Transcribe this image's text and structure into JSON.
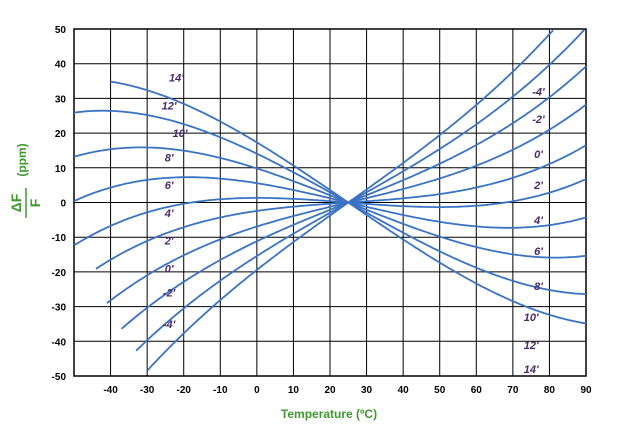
{
  "colors": {
    "curve": "#3a73c4",
    "grid": "#000000",
    "axis_title": "#3f9a2e",
    "label": "#4a2a6a"
  },
  "chart_data": {
    "type": "line",
    "xlabel": "Temperature (ºC)",
    "ylabel_numerator": "ΔF",
    "ylabel_denominator": "F",
    "ylabel_unit": "(ppm)",
    "x_ticks": [
      -40,
      -30,
      -20,
      -10,
      0,
      10,
      20,
      30,
      40,
      50,
      60,
      70,
      80,
      90
    ],
    "y_ticks": [
      50,
      40,
      30,
      20,
      10,
      0,
      -10,
      -20,
      -30,
      -40,
      -50
    ],
    "xlim": [
      -50,
      90
    ],
    "ylim": [
      -50,
      50
    ],
    "grid": true,
    "inflection": {
      "x": 25,
      "y": 0
    },
    "curve_k": 4.35e-05,
    "series": [
      {
        "label": "-4'",
        "slope": 0.75,
        "x_start": -30,
        "x_end": 90
      },
      {
        "label": "-2'",
        "slope": 0.59,
        "x_start": -33,
        "x_end": 90
      },
      {
        "label": "0'",
        "slope": 0.42,
        "x_start": -37,
        "x_end": 90
      },
      {
        "label": "2'",
        "slope": 0.25,
        "x_start": -41,
        "x_end": 90
      },
      {
        "label": "4'",
        "slope": 0.07,
        "x_start": -44,
        "x_end": 90
      },
      {
        "label": "6'",
        "slope": -0.08,
        "x_start": -50,
        "x_end": 90
      },
      {
        "label": "8'",
        "slope": -0.25,
        "x_start": -50,
        "x_end": 90
      },
      {
        "label": "10'",
        "slope": -0.42,
        "x_start": -50,
        "x_end": 90
      },
      {
        "label": "12'",
        "slope": -0.59,
        "x_start": -50,
        "x_end": 90
      },
      {
        "label": "14'",
        "slope": -0.72,
        "x_start": -40,
        "x_end": 90
      }
    ],
    "left_labels": [
      {
        "text": "14'",
        "x": -22,
        "y": 36
      },
      {
        "text": "12'",
        "x": -24,
        "y": 28
      },
      {
        "text": "10'",
        "x": -21,
        "y": 20
      },
      {
        "text": "8'",
        "x": -24,
        "y": 13
      },
      {
        "text": "6'",
        "x": -24,
        "y": 5
      },
      {
        "text": "4'",
        "x": -24,
        "y": -3
      },
      {
        "text": "2'",
        "x": -24,
        "y": -11
      },
      {
        "text": "0'",
        "x": -24,
        "y": -19
      },
      {
        "text": "-2'",
        "x": -24,
        "y": -26
      },
      {
        "text": "-4'",
        "x": -24,
        "y": -35
      }
    ],
    "right_labels": [
      {
        "text": "-4'",
        "x": 77,
        "y": 32
      },
      {
        "text": "-2'",
        "x": 77,
        "y": 24
      },
      {
        "text": "0'",
        "x": 77,
        "y": 14
      },
      {
        "text": "2'",
        "x": 77,
        "y": 5
      },
      {
        "text": "4'",
        "x": 77,
        "y": -5
      },
      {
        "text": "6'",
        "x": 77,
        "y": -14
      },
      {
        "text": "8'",
        "x": 77,
        "y": -24
      },
      {
        "text": "10'",
        "x": 75,
        "y": -33
      },
      {
        "text": "12'",
        "x": 75,
        "y": -41
      },
      {
        "text": "14'",
        "x": 75,
        "y": -48
      }
    ]
  }
}
